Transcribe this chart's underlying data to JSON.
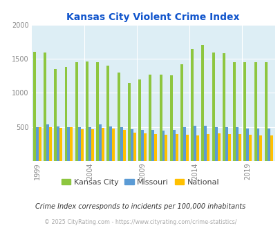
{
  "title": "Kansas City Violent Crime Index",
  "title_color": "#1155cc",
  "subtitle": "Crime Index corresponds to incidents per 100,000 inhabitants",
  "footer": "© 2025 CityRating.com - https://www.cityrating.com/crime-statistics/",
  "years": [
    1999,
    2000,
    2001,
    2002,
    2003,
    2004,
    2005,
    2006,
    2007,
    2008,
    2009,
    2010,
    2011,
    2012,
    2013,
    2014,
    2015,
    2016,
    2017,
    2018,
    2019,
    2020,
    2021
  ],
  "kansas_city": [
    1610,
    1600,
    1355,
    1380,
    1450,
    1460,
    1450,
    1400,
    1300,
    1150,
    1200,
    1265,
    1265,
    1255,
    1420,
    1650,
    1710,
    1600,
    1590,
    1450,
    1450,
    1450,
    1450
  ],
  "missouri": [
    500,
    540,
    505,
    500,
    500,
    500,
    535,
    505,
    500,
    460,
    455,
    455,
    445,
    455,
    500,
    515,
    520,
    500,
    500,
    500,
    480,
    480,
    480
  ],
  "national": [
    500,
    500,
    490,
    495,
    470,
    470,
    490,
    475,
    455,
    415,
    400,
    390,
    385,
    390,
    380,
    375,
    395,
    400,
    395,
    390,
    380,
    370,
    370
  ],
  "kc_color": "#8dc63f",
  "mo_color": "#5b9bd5",
  "nat_color": "#ffc000",
  "bg_color": "#ddeef5",
  "ylim": [
    0,
    2000
  ],
  "yticks": [
    0,
    500,
    1000,
    1500,
    2000
  ],
  "xtick_years": [
    1999,
    2004,
    2009,
    2014,
    2019
  ],
  "legend_labels": [
    "Kansas City",
    "Missouri",
    "National"
  ],
  "legend_colors": [
    "#8dc63f",
    "#5b9bd5",
    "#ffc000"
  ]
}
